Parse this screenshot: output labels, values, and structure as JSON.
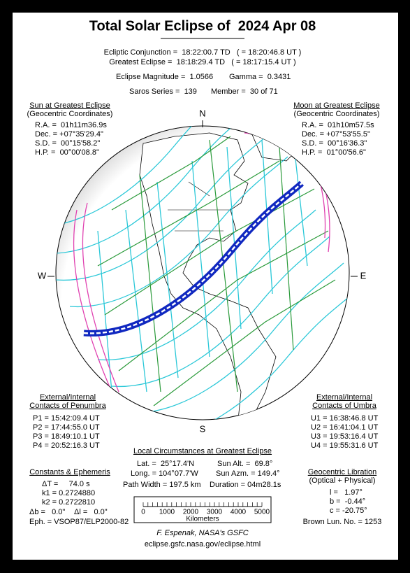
{
  "header": {
    "title": "Total Solar Eclipse of  2024 Apr 08",
    "conjunction": "Ecliptic Conjunction =  18:22:00.7 TD   ( = 18:20:46.8 UT )",
    "greatest": "Greatest Eclipse =  18:18:29.4 TD   ( = 18:17:15.4 UT )",
    "magnitude": "Eclipse Magnitude =  1.0566",
    "gamma": "Gamma =  0.3431",
    "saros": "Saros Series =  139",
    "member": "Member =  30 of 71"
  },
  "sun": {
    "title": "Sun at Greatest Eclipse",
    "subtitle": "(Geocentric Coordinates)",
    "lines": [
      "R.A. =  01h11m36.9s",
      "Dec. = +07°35'29.4\"",
      "S.D. =  00°15'58.2\"",
      "H.P. =  00°00'08.8\""
    ]
  },
  "moon": {
    "title": "Moon at Greatest Eclipse",
    "subtitle": "(Geocentric Coordinates)",
    "lines": [
      "R.A. =  01h10m57.5s",
      "Dec. = +07°53'55.5\"",
      "S.D. =  00°16'36.3\"",
      "H.P. =  01°00'56.6\""
    ]
  },
  "compass": {
    "n": "N",
    "s": "S",
    "w": "W",
    "e": "E"
  },
  "penumbra": {
    "title": "External/Internal",
    "subtitle": "Contacts of Penumbra",
    "lines": [
      "P1 = 15:42:09.4 UT",
      "P2 = 17:44:55.0 UT",
      "P3 = 18:49:10.1 UT",
      "P4 = 20:52:16.3 UT"
    ]
  },
  "umbra": {
    "title": "External/Internal",
    "subtitle": "Contacts of Umbra",
    "lines": [
      "U1 = 16:38:46.8 UT",
      "U2 = 16:41:04.1 UT",
      "U3 = 19:53:16.4 UT",
      "U4 = 19:55:31.6 UT"
    ]
  },
  "local": {
    "title": "Local Circumstances at Greatest Eclipse",
    "lat": "Lat. =  25°17.4'N",
    "sun_alt": "Sun Alt. =  69.8°",
    "long": "Long. = 104°07.7'W",
    "sun_azm": "Sun Azm. = 149.4°",
    "path_width": "Path Width = 197.5 km",
    "duration": "Duration = 04m28.1s"
  },
  "scale": {
    "ticks": [
      "0",
      "1000",
      "2000",
      "3000",
      "4000",
      "5000"
    ],
    "unit": "Kilometers"
  },
  "constants": {
    "title": "Constants & Ephemeris",
    "lines": [
      "ΔT =     74.0 s",
      "k1 = 0.2724880",
      "k2 = 0.2722810"
    ],
    "db": "Δb =   0.0\"",
    "dl": "Δl =   0.0\"",
    "eph": "Eph. = VSOP87/ELP2000-82"
  },
  "libration": {
    "title": "Geocentric Libration",
    "subtitle": "(Optical + Physical)",
    "lines": [
      "l =   1.97°",
      "b =  -0.44°",
      "c = -20.75°"
    ],
    "brown": "Brown Lun. No. = 1253"
  },
  "credit": "F. Espenak, NASA's GSFC",
  "url": "eclipse.gsfc.nasa.gov/eclipse.html"
}
